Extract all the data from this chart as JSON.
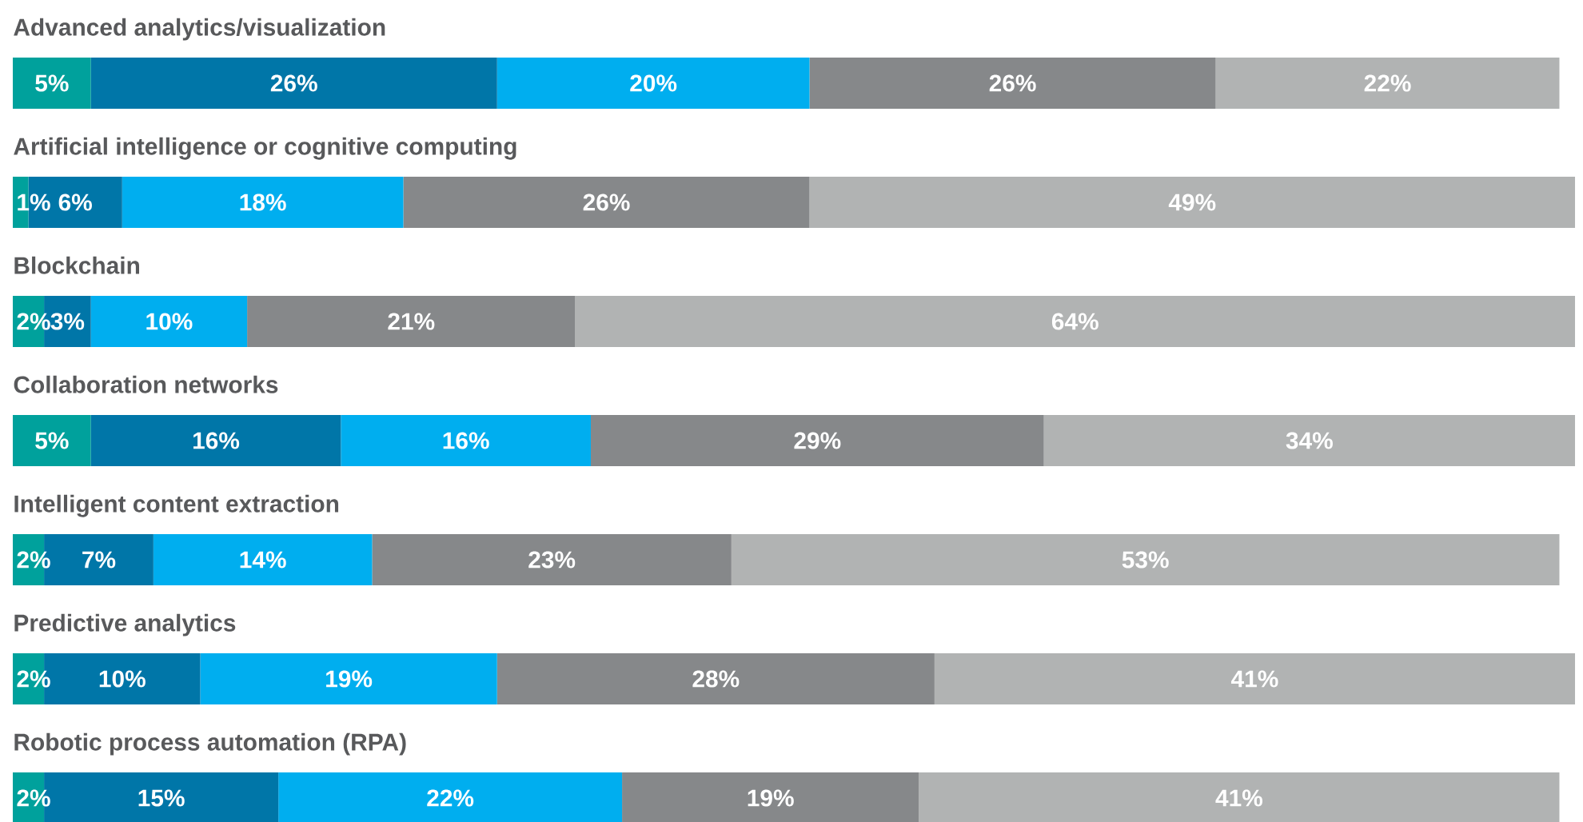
{
  "chart_data": {
    "type": "bar",
    "orientation": "horizontal",
    "stacked": true,
    "categories": [
      "Advanced analytics/visualization",
      "Artificial intelligence or cognitive computing",
      "Blockchain",
      "Collaboration networks",
      "Intelligent content extraction",
      "Predictive analytics",
      "Robotic process automation (RPA)"
    ],
    "series": [
      {
        "color": "#00a19c",
        "values": [
          5,
          1,
          2,
          5,
          2,
          2,
          2
        ],
        "value_labels": [
          "5%",
          "1%",
          "2%",
          "5%",
          "2%",
          "2%",
          "2%"
        ]
      },
      {
        "color": "#0076a8",
        "values": [
          26,
          6,
          3,
          16,
          7,
          10,
          15
        ],
        "value_labels": [
          "26%",
          "6%",
          "3%",
          "16%",
          "7%",
          "10%",
          "15%"
        ]
      },
      {
        "color": "#00aeef",
        "values": [
          20,
          18,
          10,
          16,
          14,
          19,
          22
        ],
        "value_labels": [
          "20%",
          "18%",
          "10%",
          "16%",
          "14%",
          "19%",
          "22%"
        ]
      },
      {
        "color": "#86888a",
        "values": [
          26,
          26,
          21,
          29,
          23,
          28,
          19
        ],
        "value_labels": [
          "26%",
          "26%",
          "21%",
          "29%",
          "23%",
          "28%",
          "19%"
        ]
      },
      {
        "color": "#b1b3b3",
        "values": [
          22,
          49,
          64,
          34,
          53,
          41,
          41
        ],
        "value_labels": [
          "22%",
          "49%",
          "64%",
          "34%",
          "53%",
          "41%",
          "41%"
        ]
      }
    ]
  }
}
